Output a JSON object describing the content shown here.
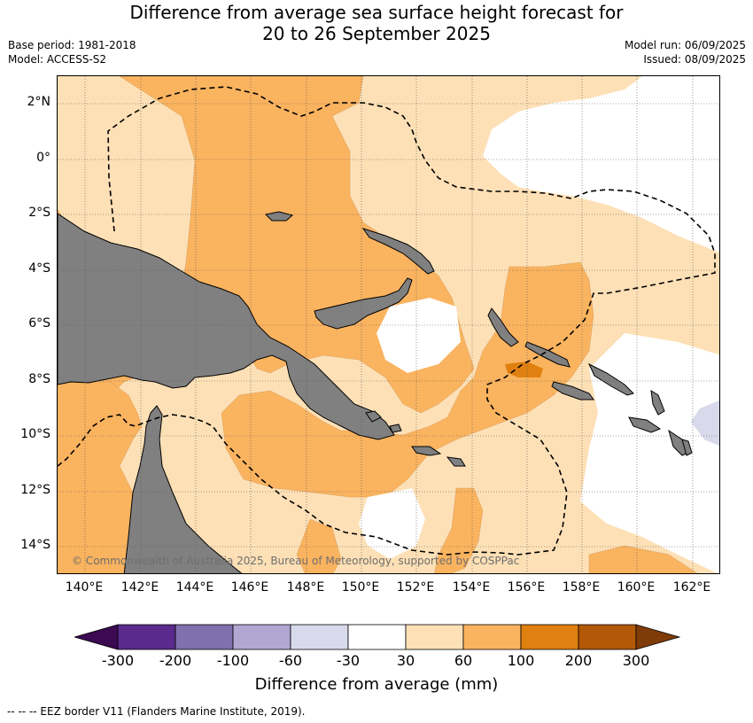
{
  "header": {
    "title_line1": "Difference from average sea surface height forecast for",
    "title_line2": "20 to 26 September 2025",
    "base_period": "Base period: 1981-2018",
    "model": "Model: ACCESS-S2",
    "model_run": "Model run: 06/09/2025",
    "issued": "Issued: 08/09/2025"
  },
  "map": {
    "lon_labels": [
      "140°E",
      "142°E",
      "144°E",
      "146°E",
      "148°E",
      "150°E",
      "152°E",
      "154°E",
      "156°E",
      "158°E",
      "160°E",
      "162°E"
    ],
    "lat_labels": [
      "2°N",
      "0°",
      "2°S",
      "4°S",
      "6°S",
      "8°S",
      "10°S",
      "12°S",
      "14°S"
    ],
    "lon_range": [
      139,
      163
    ],
    "lat_range": [
      -15,
      3
    ],
    "gridlines": true,
    "land_color": "#808080",
    "copyright": "© Commonwealth of Australia 2025, Bureau of Meteorology, supported by COSPPac"
  },
  "colorbar": {
    "ticks": [
      "-300",
      "-200",
      "-100",
      "-60",
      "-30",
      "30",
      "60",
      "100",
      "200",
      "300"
    ],
    "colors": [
      "#3b0a52",
      "#5a2a8c",
      "#8070ad",
      "#b0a8d2",
      "#d8d9ea",
      "#ffffff",
      "#fde0b6",
      "#fab35f",
      "#e08010",
      "#b35806",
      "#7f3b08"
    ],
    "title": "Difference from average (mm)"
  },
  "footnote": "--  --  -- EEZ border V11 (Flanders Marine Institute, 2019)."
}
